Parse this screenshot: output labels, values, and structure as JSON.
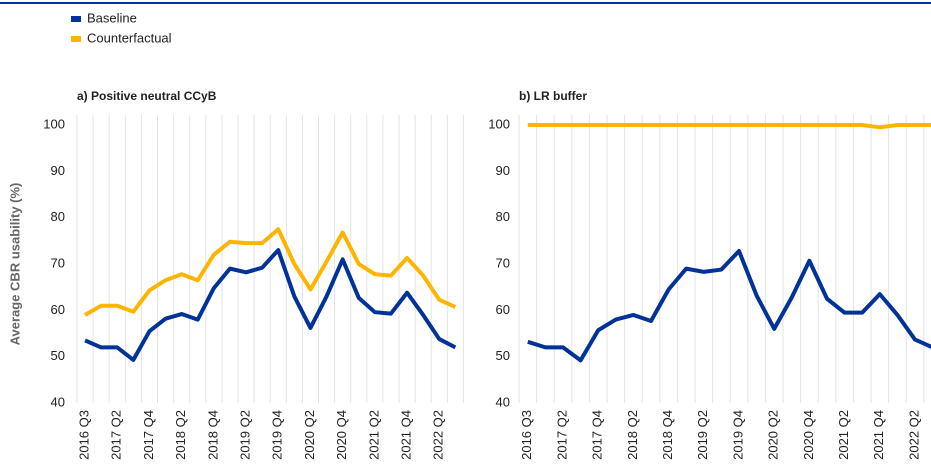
{
  "y_axis_label": "Average CBR usability (%)",
  "chart_data": [
    {
      "type": "line",
      "title": "a) Positive neutral CCyB",
      "categories": [
        "2016 Q3",
        null,
        "2017 Q2",
        null,
        "2017 Q4",
        null,
        "2018 Q2",
        null,
        "2018 Q4",
        null,
        "2019 Q2",
        null,
        "2019 Q4",
        null,
        "2020 Q2",
        null,
        "2020 Q4",
        null,
        "2021 Q2",
        null,
        "2021 Q4",
        null,
        "2022 Q2",
        null
      ],
      "series": [
        {
          "name": "Baseline",
          "color": "#003299",
          "values": [
            53.5,
            52,
            52,
            49.3,
            55.5,
            58.2,
            59.2,
            58,
            64.8,
            69,
            68.2,
            69.2,
            73,
            63,
            56.2,
            63,
            71,
            62.7,
            59.6,
            59.3,
            63.8,
            59,
            53.8,
            52
          ]
        },
        {
          "name": "Counterfactual",
          "color": "#ffb400",
          "values": [
            59,
            61,
            61,
            59.7,
            64.3,
            66.5,
            67.8,
            66.5,
            72,
            74.8,
            74.5,
            74.5,
            77.5,
            70,
            64.5,
            70.5,
            76.8,
            70,
            67.8,
            67.5,
            71.3,
            67.5,
            62.3,
            60.7
          ]
        }
      ],
      "ylim": [
        40,
        100
      ],
      "yticks": [
        40,
        50,
        60,
        70,
        80,
        90,
        100
      ],
      "grid": "vertical"
    },
    {
      "type": "line",
      "title": "b) LR buffer",
      "categories": [
        "2016 Q3",
        null,
        "2017 Q2",
        null,
        "2017 Q4",
        null,
        "2018 Q2",
        null,
        "2018 Q4",
        null,
        "2019 Q2",
        null,
        "2019 Q4",
        null,
        "2020 Q2",
        null,
        "2020 Q4",
        null,
        "2021 Q2",
        null,
        "2021 Q4",
        null,
        "2022 Q2",
        null
      ],
      "series": [
        {
          "color": "#003299",
          "values": [
            53.2,
            52,
            52,
            49.2,
            55.7,
            58,
            59,
            57.7,
            64.5,
            69,
            68.3,
            68.8,
            72.8,
            63.2,
            56,
            62.8,
            70.7,
            62.5,
            59.5,
            59.5,
            63.5,
            59,
            53.7,
            52
          ]
        },
        {
          "color": "#ffb400",
          "values": [
            100,
            100,
            100,
            100,
            100,
            100,
            100,
            100,
            100,
            100,
            100,
            100,
            100,
            100,
            100,
            100,
            100,
            100,
            100,
            100,
            99.5,
            100,
            100,
            100
          ]
        }
      ],
      "ylim": [
        40,
        100
      ],
      "yticks": [
        40,
        50,
        60,
        70,
        80,
        90,
        100
      ],
      "grid": "vertical"
    }
  ]
}
